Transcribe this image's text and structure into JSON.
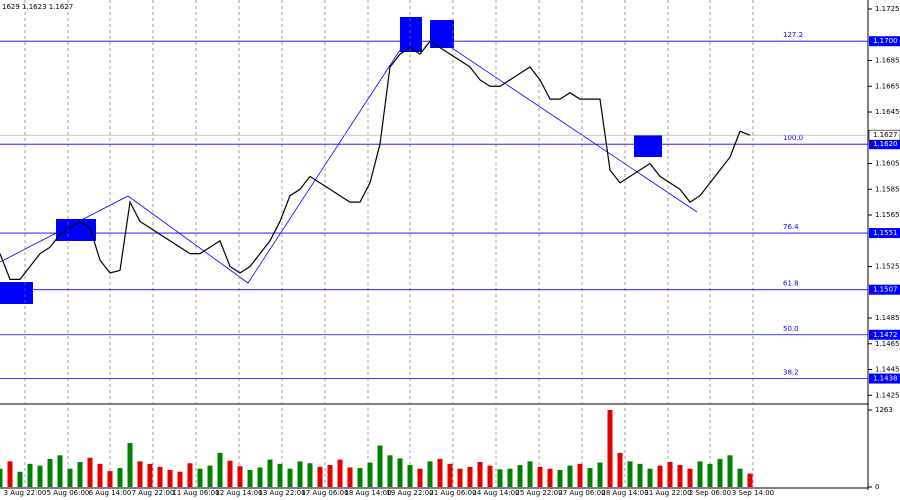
{
  "chart_data": {
    "type": "line",
    "header": "1629 1.1623 1.1627",
    "x": [
      0,
      1,
      2,
      3,
      4,
      5,
      6,
      7,
      8,
      9,
      10,
      11,
      12,
      13,
      14,
      15,
      16,
      17,
      18,
      19,
      20,
      21,
      22,
      23,
      24,
      25,
      26,
      27,
      28,
      29,
      30,
      31,
      32,
      33,
      34,
      35,
      36,
      37,
      38,
      39,
      40,
      41,
      42,
      43,
      44,
      45,
      46,
      47,
      48,
      49,
      50,
      51,
      52,
      53,
      54,
      55,
      56,
      57,
      58,
      59,
      60,
      61,
      62,
      63,
      64,
      65,
      66,
      67,
      68,
      69,
      70,
      71,
      72,
      73,
      74,
      75
    ],
    "values": [
      1.1535,
      1.1515,
      1.1515,
      1.1525,
      1.1535,
      1.154,
      1.155,
      1.1555,
      1.156,
      1.1555,
      1.153,
      1.152,
      1.1522,
      1.1575,
      1.156,
      1.1555,
      1.155,
      1.1545,
      1.154,
      1.1535,
      1.1535,
      1.154,
      1.1545,
      1.1525,
      1.152,
      1.1525,
      1.1535,
      1.1545,
      1.156,
      1.158,
      1.1585,
      1.1595,
      1.159,
      1.1585,
      1.158,
      1.1575,
      1.1575,
      1.159,
      1.162,
      1.168,
      1.169,
      1.1695,
      1.169,
      1.17,
      1.1695,
      1.169,
      1.1685,
      1.168,
      1.167,
      1.1665,
      1.1665,
      1.167,
      1.1675,
      1.168,
      1.167,
      1.1655,
      1.1655,
      1.166,
      1.1655,
      1.1655,
      1.1655,
      1.16,
      1.159,
      1.1595,
      1.16,
      1.1605,
      1.1595,
      1.159,
      1.1585,
      1.1575,
      1.158,
      1.159,
      1.16,
      1.161,
      1.163,
      1.1627
    ],
    "color": "#000000",
    "xlim": [
      0,
      86.8
    ],
    "ylim": [
      1.1419,
      1.1732
    ],
    "xticks": [
      {
        "value": 2.5,
        "label": "3 Aug 22:00"
      },
      {
        "value": 6.8,
        "label": "5 Aug 06:00"
      },
      {
        "value": 11.0,
        "label": "6 Aug 14:00"
      },
      {
        "value": 15.3,
        "label": "7 Aug 22:00"
      },
      {
        "value": 19.6,
        "label": "11 Aug 06:00"
      },
      {
        "value": 23.9,
        "label": "12 Aug 14:00"
      },
      {
        "value": 28.2,
        "label": "13 Aug 22:00"
      },
      {
        "value": 32.5,
        "label": "17 Aug 06:00"
      },
      {
        "value": 36.8,
        "label": "18 Aug 14:00"
      },
      {
        "value": 41.0,
        "label": "19 Aug 22:00"
      },
      {
        "value": 45.3,
        "label": "21 Aug 06:00"
      },
      {
        "value": 49.6,
        "label": "24 Aug 14:00"
      },
      {
        "value": 53.9,
        "label": "25 Aug 22:00"
      },
      {
        "value": 58.2,
        "label": "27 Aug 06:00"
      },
      {
        "value": 62.5,
        "label": "28 Aug 14:00"
      },
      {
        "value": 66.8,
        "label": "31 Aug 22:00"
      },
      {
        "value": 71.0,
        "label": "2 Sep 06:00"
      },
      {
        "value": 75.3,
        "label": "3 Sep 14:00"
      }
    ],
    "yticks": [
      1.1725,
      1.1685,
      1.1665,
      1.1645,
      1.1605,
      1.1585,
      1.1565,
      1.1525,
      1.1485,
      1.1465,
      1.1445,
      1.1425
    ],
    "levels": {
      "names": [
        "127.2",
        "100.0",
        "76.4",
        "61.8",
        "50.0",
        "38.2"
      ],
      "values": [
        1.17,
        1.162,
        1.1551,
        1.1507,
        1.1472,
        1.1438
      ],
      "value_labels": [
        "1.1700",
        "1.1620",
        "1.1551",
        "1.1507",
        "1.1472",
        "1.1438"
      ],
      "color": "#0000ff"
    },
    "last": {
      "value": 1.1627,
      "label": "1.1627"
    },
    "volume": {
      "values": [
        300,
        420,
        250,
        380,
        350,
        460,
        520,
        300,
        410,
        480,
        380,
        260,
        310,
        720,
        420,
        380,
        330,
        280,
        250,
        390,
        300,
        350,
        560,
        430,
        340,
        280,
        320,
        450,
        380,
        300,
        420,
        390,
        330,
        360,
        450,
        320,
        310,
        400,
        680,
        520,
        470,
        360,
        300,
        420,
        460,
        380,
        300,
        330,
        410,
        350,
        290,
        300,
        360,
        420,
        330,
        300,
        280,
        350,
        380,
        310,
        400,
        1263,
        560,
        420,
        380,
        300,
        350,
        410,
        360,
        300,
        420,
        380,
        460,
        520,
        300,
        220
      ],
      "ylim": [
        0,
        1263
      ],
      "yticks": [
        0,
        1263
      ],
      "up_color": "#008000",
      "down_color": "#e00000"
    }
  }
}
